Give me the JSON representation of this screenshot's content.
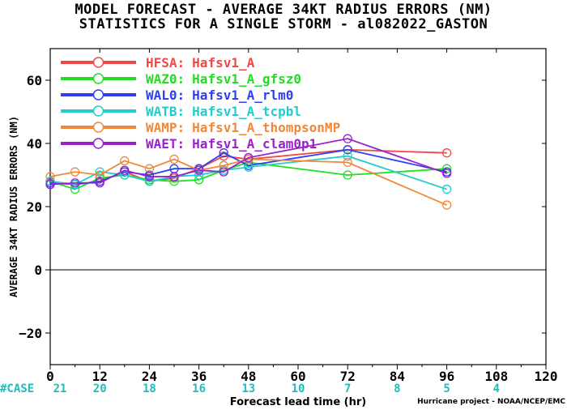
{
  "title_line1": "MODEL FORECAST - AVERAGE 34KT RADIUS ERRORS (NM)",
  "title_line2": "STATISTICS FOR A SINGLE STORM - al082022_GASTON",
  "credit": "Hurricane project - NOAA/NCEP/EMC",
  "chart_data": {
    "type": "line",
    "xlabel": "Forecast lead time (hr)",
    "ylabel": "AVERAGE 34KT RADIUS ERRORS (NM)",
    "xlim": [
      0,
      120
    ],
    "ylim": [
      -30,
      70
    ],
    "xticks": [
      0,
      12,
      24,
      36,
      48,
      60,
      72,
      84,
      96,
      108,
      120
    ],
    "yticks": [
      -20,
      0,
      20,
      40,
      60
    ],
    "zero_line": true,
    "grid": false,
    "legend_position": "top-left",
    "case_label": "#CASE",
    "case_counts": [
      {
        "x": 0,
        "n": "21"
      },
      {
        "x": 12,
        "n": "20"
      },
      {
        "x": 24,
        "n": "18"
      },
      {
        "x": 36,
        "n": "16"
      },
      {
        "x": 48,
        "n": "13"
      },
      {
        "x": 60,
        "n": "10"
      },
      {
        "x": 72,
        "n": "7"
      },
      {
        "x": 84,
        "n": "8"
      },
      {
        "x": 96,
        "n": "5"
      },
      {
        "x": 108,
        "n": "4"
      }
    ],
    "series": [
      {
        "code": "HFSA:",
        "name": "Hafsv1_A",
        "color": "#f04848",
        "x": [
          0,
          6,
          12,
          18,
          24,
          30,
          36,
          42,
          48,
          72,
          96
        ],
        "y": [
          28,
          27,
          28,
          31,
          28,
          29,
          32,
          36,
          35,
          38,
          37
        ]
      },
      {
        "code": "WAZ0:",
        "name": "Hafsv1_A_gfsz0",
        "color": "#22dd22",
        "x": [
          0,
          6,
          12,
          18,
          24,
          30,
          36,
          42,
          48,
          72,
          96
        ],
        "y": [
          28,
          25.5,
          29,
          30,
          28.5,
          28,
          28.5,
          31.5,
          34,
          30,
          32
        ]
      },
      {
        "code": "WAL0:",
        "name": "Hafsv1_A_rlm0",
        "color": "#3040ee",
        "x": [
          0,
          6,
          12,
          18,
          24,
          30,
          36,
          42,
          48,
          72,
          96
        ],
        "y": [
          27.5,
          27,
          28,
          31,
          30,
          32,
          32,
          37,
          33,
          38,
          31
        ]
      },
      {
        "code": "WATB:",
        "name": "Hafsv1_A_tcpbl",
        "color": "#22cccc",
        "x": [
          0,
          6,
          12,
          18,
          24,
          30,
          36,
          42,
          48,
          72,
          96
        ],
        "y": [
          28,
          27,
          31,
          30,
          28,
          29.5,
          30,
          31.5,
          32.5,
          36,
          25.5
        ]
      },
      {
        "code": "WAMP:",
        "name": "Hafsv1_A_thompsonMP",
        "color": "#f08838",
        "x": [
          0,
          6,
          12,
          18,
          24,
          30,
          36,
          42,
          48,
          72,
          96
        ],
        "y": [
          29.5,
          31,
          30,
          34.5,
          32,
          35,
          31.5,
          33,
          35,
          34,
          20.5
        ]
      },
      {
        "code": "WAET:",
        "name": "Hafsv1_A_clam0p1",
        "color": "#9922cc",
        "x": [
          0,
          6,
          12,
          18,
          24,
          30,
          36,
          42,
          48,
          72,
          96
        ],
        "y": [
          27,
          27.5,
          27.5,
          31.5,
          29.5,
          29.5,
          31.5,
          31,
          35.5,
          41.5,
          30.5
        ]
      }
    ]
  }
}
